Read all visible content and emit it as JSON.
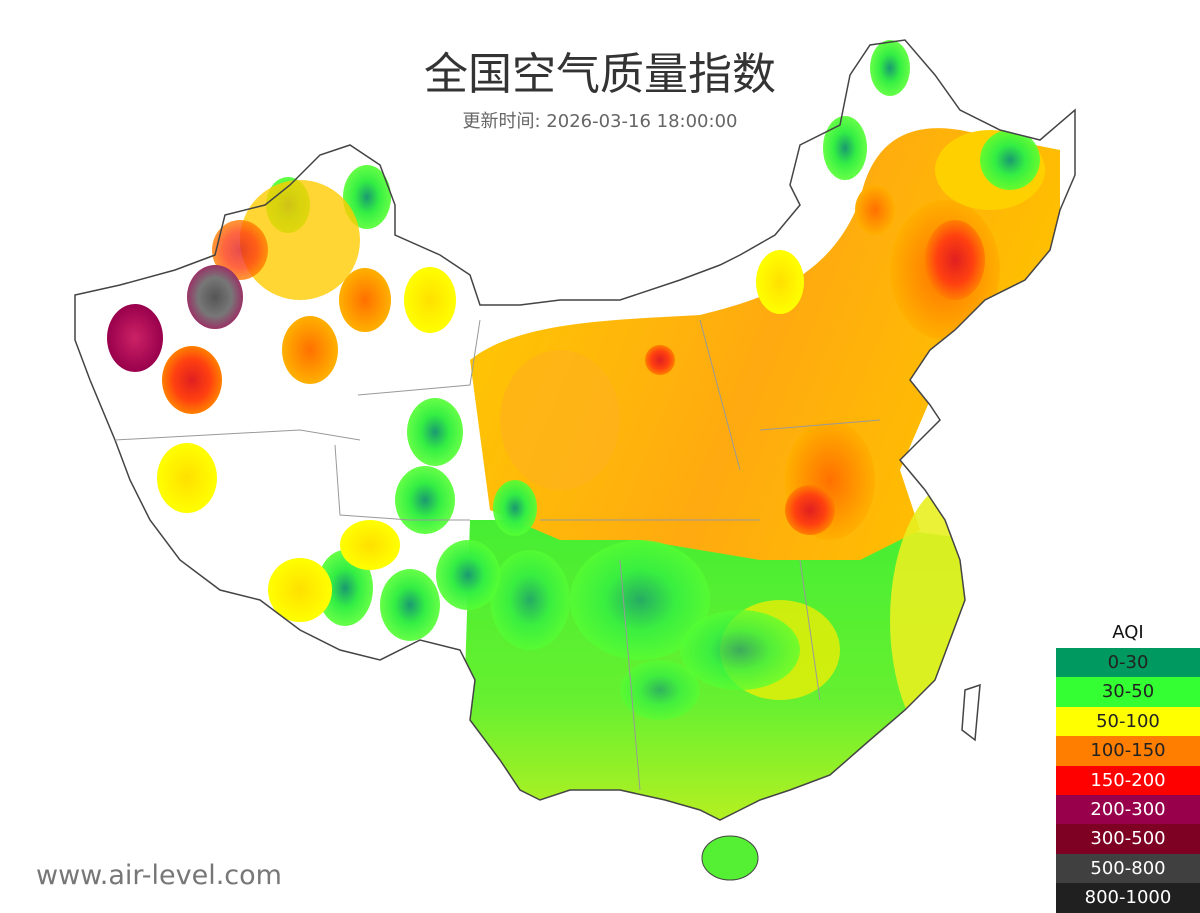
{
  "header": {
    "title": "全国空气质量指数",
    "subtitle": "更新时间: 2026-03-16 18:00:00"
  },
  "watermark": "www.air-level.com",
  "legend": {
    "title": "AQI",
    "items": [
      {
        "label": "0-30",
        "color": "#00995f",
        "text_color": "#222222"
      },
      {
        "label": "30-50",
        "color": "#33ff33",
        "text_color": "#222222"
      },
      {
        "label": "50-100",
        "color": "#ffff00",
        "text_color": "#222222"
      },
      {
        "label": "100-150",
        "color": "#ff7e00",
        "text_color": "#222222"
      },
      {
        "label": "150-200",
        "color": "#ff0000",
        "text_color": "#ffffff"
      },
      {
        "label": "200-300",
        "color": "#99004c",
        "text_color": "#ffffff"
      },
      {
        "label": "300-500",
        "color": "#7e0023",
        "text_color": "#ffffff"
      },
      {
        "label": "500-800",
        "color": "#404040",
        "text_color": "#ffffff"
      },
      {
        "label": "800-1000",
        "color": "#202020",
        "text_color": "#ffffff"
      }
    ]
  }
}
